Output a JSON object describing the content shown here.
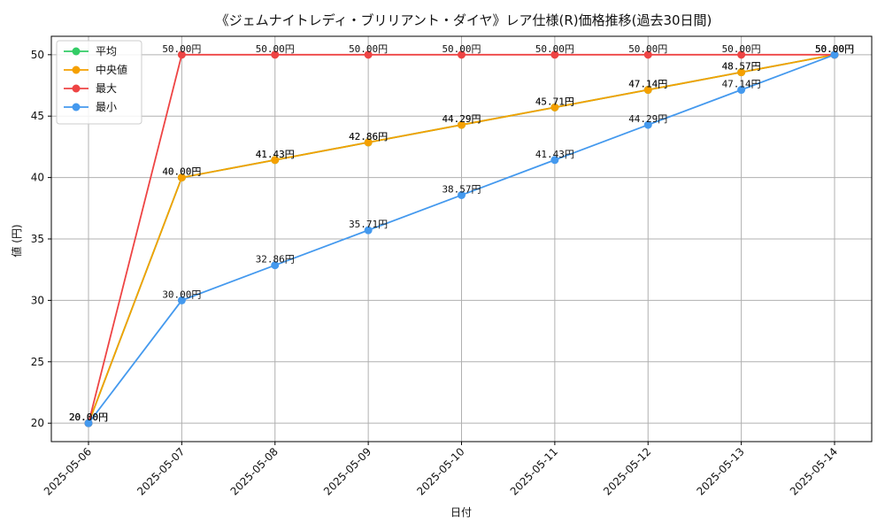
{
  "chart_data": {
    "type": "line",
    "title": "《ジェムナイトレディ・ブリリアント・ダイヤ》レア仕様(R)価格推移(過去30日間)",
    "xlabel": "日付",
    "ylabel": "値 (円)",
    "x": [
      "2025-05-06",
      "2025-05-07",
      "2025-05-08",
      "2025-05-09",
      "2025-05-10",
      "2025-05-11",
      "2025-05-12",
      "2025-05-13",
      "2025-05-14"
    ],
    "ylim": [
      18.5,
      51.5
    ],
    "yticks": [
      20,
      25,
      30,
      35,
      40,
      45,
      50
    ],
    "grid": true,
    "legend_position": "top-left",
    "value_suffix": "円",
    "series": [
      {
        "name": "平均",
        "color": "#33cc66",
        "values": [
          20.0,
          40.0,
          41.43,
          42.86,
          44.29,
          45.71,
          47.14,
          48.57,
          50.0
        ]
      },
      {
        "name": "中央値",
        "color": "#f5a000",
        "values": [
          20.0,
          40.0,
          41.43,
          42.86,
          44.29,
          45.71,
          47.14,
          48.57,
          50.0
        ]
      },
      {
        "name": "最大",
        "color": "#ee4444",
        "values": [
          20.0,
          50.0,
          50.0,
          50.0,
          50.0,
          50.0,
          50.0,
          50.0,
          50.0
        ]
      },
      {
        "name": "最小",
        "color": "#4499ee",
        "values": [
          20.0,
          30.0,
          32.86,
          35.71,
          38.57,
          41.43,
          44.29,
          47.14,
          50.0
        ]
      }
    ]
  }
}
